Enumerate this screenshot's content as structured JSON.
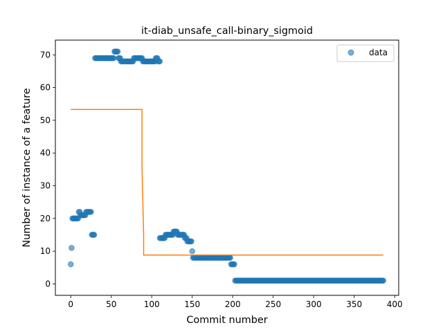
{
  "chart_data": {
    "type": "scatter",
    "title": "it-diab_unsafe_call-binary_sigmoid",
    "xlabel": "Commit number",
    "ylabel": "Number of instance of a feature",
    "xlim": [
      -19,
      405
    ],
    "ylim": [
      -3.5,
      74.5
    ],
    "xticks": [
      0,
      50,
      100,
      150,
      200,
      250,
      300,
      350,
      400
    ],
    "yticks": [
      0,
      10,
      20,
      30,
      40,
      50,
      60,
      70
    ],
    "grid": false,
    "legend": {
      "placement": "top-right",
      "entries": [
        "data"
      ]
    },
    "colors": {
      "data": "#1f77b4",
      "fit": "#ff7f0e"
    },
    "series": [
      {
        "name": "data",
        "kind": "scatter",
        "segments": [
          {
            "x": [
              0
            ],
            "y": 6
          },
          {
            "x": [
              1
            ],
            "y": 11
          },
          {
            "x": [
              2,
              9
            ],
            "y": 20
          },
          {
            "x": [
              10,
              11
            ],
            "y": 22
          },
          {
            "x": [
              12,
              18
            ],
            "y": 21
          },
          {
            "x": [
              19,
              25
            ],
            "y": 22
          },
          {
            "x": [
              26,
              29
            ],
            "y": 15
          },
          {
            "x": [
              30,
              53
            ],
            "y": 69
          },
          {
            "x": [
              54,
              58
            ],
            "y": 71
          },
          {
            "x": [
              59,
              61
            ],
            "y": 69
          },
          {
            "x": [
              62,
              77
            ],
            "y": 68
          },
          {
            "x": [
              78,
              88
            ],
            "y": 69
          },
          {
            "x": [
              89,
              104
            ],
            "y": 68
          },
          {
            "x": [
              105,
              107
            ],
            "y": 69
          },
          {
            "x": [
              108,
              110
            ],
            "y": 68
          },
          {
            "x": [
              110,
              116
            ],
            "y": 14
          },
          {
            "x": [
              117,
              126
            ],
            "y": 15
          },
          {
            "x": [
              127,
              131
            ],
            "y": 16
          },
          {
            "x": [
              132,
              140
            ],
            "y": 15
          },
          {
            "x": [
              141,
              143
            ],
            "y": 14
          },
          {
            "x": [
              144,
              149
            ],
            "y": 13
          },
          {
            "x": [
              150
            ],
            "y": 10
          },
          {
            "x": [
              151,
              197
            ],
            "y": 8
          },
          {
            "x": [
              198,
              202
            ],
            "y": 6
          },
          {
            "x": [
              203,
              386
            ],
            "y": 1
          }
        ]
      },
      {
        "name": "",
        "kind": "line",
        "x": [
          0,
          88,
          88,
          90,
          90,
          386
        ],
        "y": [
          53.3,
          53.3,
          35,
          15,
          8.8,
          8.8
        ]
      }
    ]
  }
}
